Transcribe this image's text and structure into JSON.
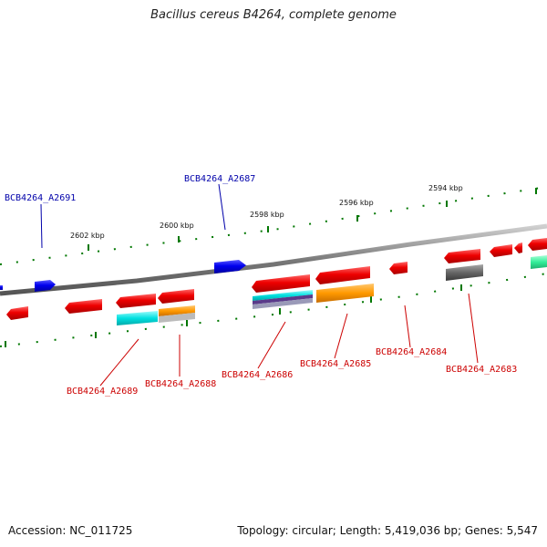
{
  "title": "Bacillus cereus B4264, complete genome",
  "footer": {
    "accession": "Accession: NC_011725",
    "info": "Topology: circular; Length: 5,419,036 bp; Genes: 5,547"
  },
  "ticks": [
    "2602 kbp",
    "2600 kbp",
    "2598 kbp",
    "2596 kbp",
    "2594 kbp"
  ],
  "genes_top": [
    "BCB4264_A2691",
    "BCB4264_A2687"
  ],
  "genes_bottom": [
    "BCB4264_A2689",
    "BCB4264_A2688",
    "BCB4264_A2686",
    "BCB4264_A2685",
    "BCB4264_A2684",
    "BCB4264_A2683"
  ],
  "colors": {
    "forward_gene": "#0000ee",
    "reverse_gene": "#ee0000",
    "forward_label": "#0000aa",
    "reverse_label": "#cc0000",
    "backbone": "#888888",
    "tick": "#007700",
    "cyan_track": "#00e0e0",
    "orange_track": "#ff9900",
    "gray_track": "#666666",
    "mint_track": "#33ee99"
  }
}
